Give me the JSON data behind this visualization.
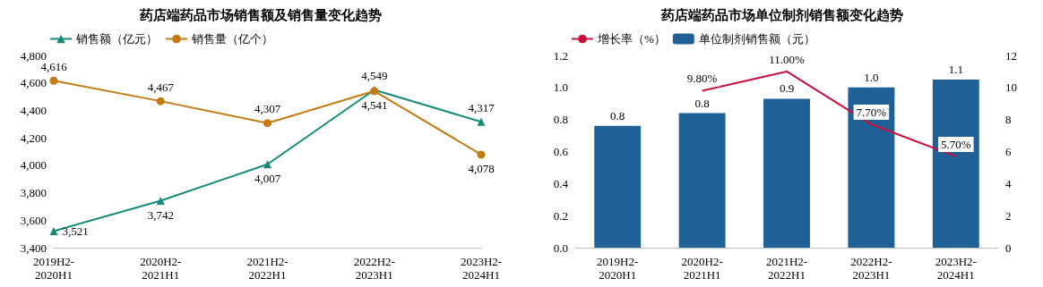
{
  "chart_data": [
    {
      "type": "line",
      "title": "药店端药品市场销售额及销售量变化趋势",
      "categories": [
        "2019H2-\n2020H1",
        "2020H2-\n2021H1",
        "2021H2-\n2022H1",
        "2022H2-\n2023H1",
        "2023H2-\n2024H1"
      ],
      "series": [
        {
          "name": "销售额（亿元）",
          "color": "#168a78",
          "marker": "triangle",
          "values": [
            3521,
            3742,
            4007,
            4549,
            4317
          ],
          "value_labels": [
            "3,521",
            "3,742",
            "4,007",
            "4,549",
            "4,317"
          ]
        },
        {
          "name": "销售量（亿个）",
          "color": "#c47a12",
          "marker": "circle",
          "values": [
            4616,
            4467,
            4307,
            4541,
            4078
          ],
          "value_labels": [
            "4,616",
            "4,467",
            "4,307",
            "4,541",
            "4,078"
          ]
        }
      ],
      "ylim": [
        3400,
        4800
      ],
      "yticks": [
        {
          "value": 3400,
          "label": "3,400"
        },
        {
          "value": 3600,
          "label": "3,600"
        },
        {
          "value": 3800,
          "label": "3,800"
        },
        {
          "value": 4000,
          "label": "4,000"
        },
        {
          "value": 4200,
          "label": "4,200"
        },
        {
          "value": 4400,
          "label": "4,400"
        },
        {
          "value": 4600,
          "label": "4,600"
        },
        {
          "value": 4800,
          "label": "4,800"
        }
      ],
      "grid": false,
      "legend": "top left"
    },
    {
      "type": "bar",
      "title": "药店端药品市场单位制剂销售额变化趋势",
      "categories": [
        "2019H2-\n2020H1",
        "2020H2-\n2021H1",
        "2021H2-\n2022H1",
        "2022H2-\n2023H1",
        "2023H2-\n2024H1"
      ],
      "series": [
        {
          "name": "增长率（%）",
          "type": "line",
          "axis": "y2",
          "color": "#c8103c",
          "marker": "none",
          "values": [
            null,
            9.8,
            11.0,
            7.7,
            5.7
          ],
          "value_labels": [
            null,
            "9.80%",
            "11.00%",
            "7.70%",
            "5.70%"
          ]
        },
        {
          "name": "单位制剂销售额（元）",
          "type": "bar",
          "color": "#1f6196",
          "values": [
            0.76,
            0.84,
            0.93,
            1.0,
            1.05
          ],
          "value_labels": [
            "0.8",
            "0.8",
            "0.9",
            "1.0",
            "1.1"
          ]
        }
      ],
      "ylim": [
        0,
        1.2
      ],
      "yticks": [
        {
          "value": 0,
          "label": "0.0"
        },
        {
          "value": 0.2,
          "label": "0.2"
        },
        {
          "value": 0.4,
          "label": "0.4"
        },
        {
          "value": 0.6,
          "label": "0.6"
        },
        {
          "value": 0.8,
          "label": "0.8"
        },
        {
          "value": 1.0,
          "label": "1.0"
        },
        {
          "value": 1.2,
          "label": "1.2"
        }
      ],
      "y2lim": [
        0,
        12
      ],
      "y2ticks": [
        0,
        2,
        4,
        6,
        8,
        10,
        12
      ],
      "grid": false,
      "legend": "top left"
    }
  ]
}
